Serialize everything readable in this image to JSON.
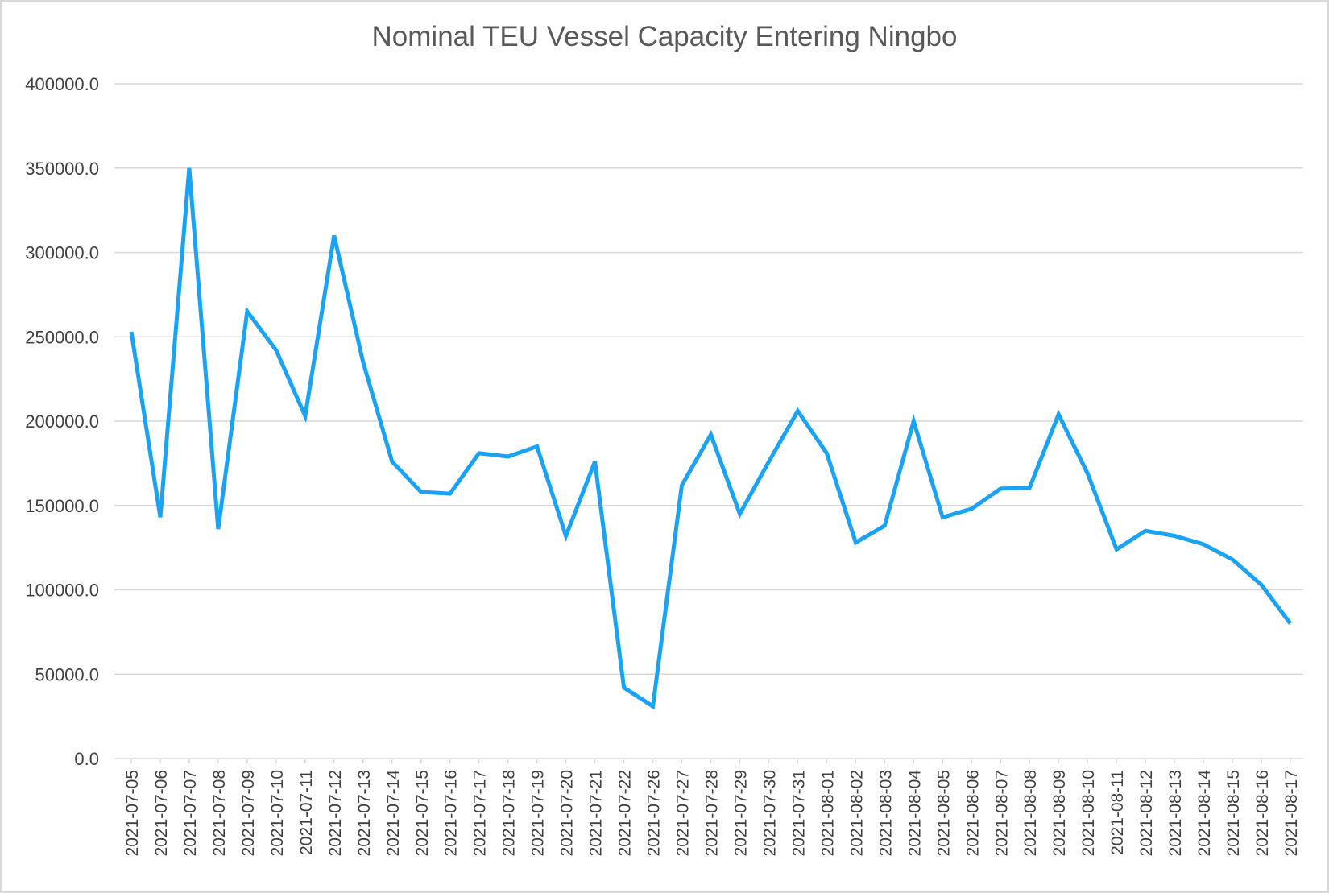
{
  "chart_data": {
    "type": "line",
    "title": "Nominal TEU Vessel Capacity Entering Ningbo",
    "xlabel": "",
    "ylabel": "",
    "ylim": [
      0,
      400000
    ],
    "y_ticks": [
      "0.0",
      "50000.0",
      "100000.0",
      "150000.0",
      "200000.0",
      "250000.0",
      "300000.0",
      "350000.0",
      "400000.0"
    ],
    "grid": true,
    "legend": "none",
    "line_color": "#1aa3f5",
    "grid_color": "#d9d9d9",
    "categories": [
      "2021-07-05",
      "2021-07-06",
      "2021-07-07",
      "2021-07-08",
      "2021-07-09",
      "2021-07-10",
      "2021-07-11",
      "2021-07-12",
      "2021-07-13",
      "2021-07-14",
      "2021-07-15",
      "2021-07-16",
      "2021-07-17",
      "2021-07-18",
      "2021-07-19",
      "2021-07-20",
      "2021-07-21",
      "2021-07-22",
      "2021-07-26",
      "2021-07-27",
      "2021-07-28",
      "2021-07-29",
      "2021-07-30",
      "2021-07-31",
      "2021-08-01",
      "2021-08-02",
      "2021-08-03",
      "2021-08-04",
      "2021-08-05",
      "2021-08-06",
      "2021-08-07",
      "2021-08-08",
      "2021-08-09",
      "2021-08-10",
      "2021-08-11",
      "2021-08-12",
      "2021-08-13",
      "2021-08-14",
      "2021-08-15",
      "2021-08-16",
      "2021-08-17"
    ],
    "values": [
      253000,
      143000,
      350000,
      136000,
      265000,
      242000,
      203000,
      310000,
      235000,
      176000,
      158000,
      157000,
      181000,
      179000,
      185000,
      132000,
      176000,
      42000,
      31000,
      162000,
      192000,
      145000,
      176000,
      206000,
      181000,
      128000,
      138000,
      200000,
      143000,
      148000,
      160000,
      160500,
      204000,
      169000,
      124000,
      135000,
      132000,
      127000,
      118000,
      103000,
      80000
    ]
  }
}
